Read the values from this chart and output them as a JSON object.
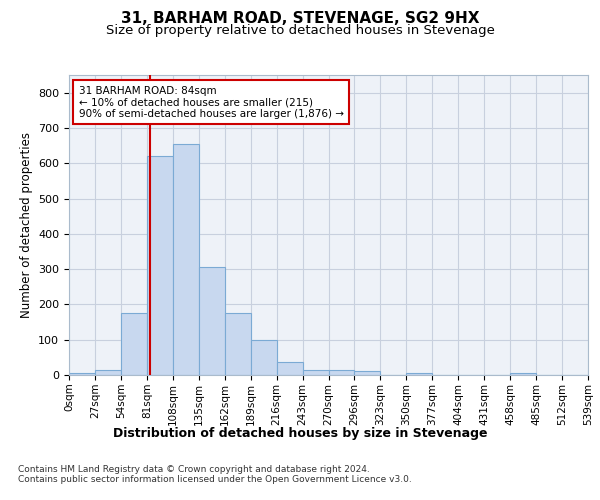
{
  "title": "31, BARHAM ROAD, STEVENAGE, SG2 9HX",
  "subtitle": "Size of property relative to detached houses in Stevenage",
  "xlabel": "Distribution of detached houses by size in Stevenage",
  "ylabel": "Number of detached properties",
  "bin_edges": [
    0,
    27,
    54,
    81,
    108,
    135,
    162,
    189,
    216,
    243,
    270,
    297,
    324,
    351,
    378,
    405,
    432,
    459,
    486,
    513,
    540
  ],
  "bar_heights": [
    5,
    15,
    175,
    620,
    655,
    305,
    175,
    100,
    38,
    15,
    13,
    10,
    0,
    5,
    0,
    0,
    0,
    5,
    0,
    0
  ],
  "bar_color": "#c8d8ef",
  "bar_edgecolor": "#7baad4",
  "bar_linewidth": 0.8,
  "grid_color": "#c8d0de",
  "background_color": "#ffffff",
  "ax_facecolor": "#eef2f8",
  "vline_x": 84,
  "vline_color": "#cc0000",
  "annotation_line1": "31 BARHAM ROAD: 84sqm",
  "annotation_line2": "← 10% of detached houses are smaller (215)",
  "annotation_line3": "90% of semi-detached houses are larger (1,876) →",
  "annotation_box_color": "#ffffff",
  "annotation_box_edgecolor": "#cc0000",
  "ylim": [
    0,
    850
  ],
  "yticks": [
    0,
    100,
    200,
    300,
    400,
    500,
    600,
    700,
    800
  ],
  "tick_labels": [
    "0sqm",
    "27sqm",
    "54sqm",
    "81sqm",
    "108sqm",
    "135sqm",
    "162sqm",
    "189sqm",
    "216sqm",
    "243sqm",
    "270sqm",
    "296sqm",
    "323sqm",
    "350sqm",
    "377sqm",
    "404sqm",
    "431sqm",
    "458sqm",
    "485sqm",
    "512sqm",
    "539sqm"
  ],
  "footer_line1": "Contains HM Land Registry data © Crown copyright and database right 2024.",
  "footer_line2": "Contains public sector information licensed under the Open Government Licence v3.0."
}
